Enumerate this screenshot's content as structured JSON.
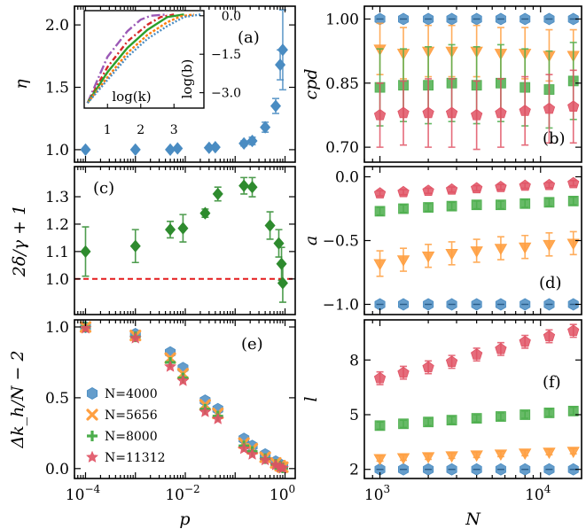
{
  "figure_title": "",
  "chart_data": [
    {
      "id": "a",
      "type": "scatter",
      "panel_label": "(a)",
      "xlabel": "",
      "ylabel": "η",
      "xscale": "log",
      "xlim": [
        6e-05,
        1.6
      ],
      "ylim": [
        0.9,
        2.15
      ],
      "xticks": [],
      "yticks": [
        1.0,
        1.5,
        2.0
      ],
      "ytick_labels": [
        "1.0",
        "1.5",
        "2.0"
      ],
      "series": [
        {
          "name": "η",
          "color": "#4a8cc2",
          "marker": "diamond",
          "points": [
            {
              "x": 0.0001,
              "y": 1.0,
              "err": 0.005
            },
            {
              "x": 0.001,
              "y": 1.0,
              "err": 0.005
            },
            {
              "x": 0.005,
              "y": 1.0,
              "err": 0.005
            },
            {
              "x": 0.007,
              "y": 1.01,
              "err": 0.005
            },
            {
              "x": 0.03,
              "y": 1.015,
              "err": 0.01
            },
            {
              "x": 0.04,
              "y": 1.02,
              "err": 0.015
            },
            {
              "x": 0.15,
              "y": 1.05,
              "err": 0.02
            },
            {
              "x": 0.22,
              "y": 1.07,
              "err": 0.03
            },
            {
              "x": 0.4,
              "y": 1.18,
              "err": 0.04
            },
            {
              "x": 0.65,
              "y": 1.35,
              "err": 0.06
            },
            {
              "x": 0.8,
              "y": 1.68,
              "err": 0.12
            },
            {
              "x": 0.9,
              "y": 1.8,
              "err": 0.32
            }
          ]
        }
      ],
      "inset": {
        "xlabel": "log(k)",
        "ylabel": "log(b)",
        "xlim": [
          0.3,
          3.9
        ],
        "ylim": [
          -3.6,
          0.2
        ],
        "xticks": [
          1,
          2,
          3
        ],
        "xtick_labels": [
          "1",
          "2",
          "3"
        ],
        "yticks": [
          0.0,
          -1.5,
          -3.0
        ],
        "ytick_labels": [
          "0.0",
          "−1.5",
          "−3.0"
        ],
        "curves": [
          {
            "name": "curve-purple",
            "color": "#9b59b6",
            "dash": "10 3 2 3",
            "pts": [
              [
                0.4,
                -3.4
              ],
              [
                1.0,
                -1.6
              ],
              [
                1.6,
                -0.6
              ],
              [
                2.0,
                -0.15
              ],
              [
                2.3,
                0.0
              ],
              [
                2.8,
                0.05
              ]
            ]
          },
          {
            "name": "curve-red",
            "color": "#d62728",
            "dash": "6 3 2 3",
            "pts": [
              [
                0.4,
                -3.4
              ],
              [
                1.0,
                -2.0
              ],
              [
                1.6,
                -1.0
              ],
              [
                2.2,
                -0.35
              ],
              [
                2.6,
                -0.05
              ],
              [
                3.0,
                0.05
              ]
            ]
          },
          {
            "name": "curve-green",
            "color": "#2ca02c",
            "dash": "",
            "pts": [
              [
                0.4,
                -3.4
              ],
              [
                1.0,
                -2.2
              ],
              [
                1.6,
                -1.25
              ],
              [
                2.2,
                -0.55
              ],
              [
                2.8,
                -0.05
              ],
              [
                3.3,
                0.05
              ]
            ]
          },
          {
            "name": "curve-orange",
            "color": "#ff7f0e",
            "dash": "3 2",
            "pts": [
              [
                0.4,
                -3.4
              ],
              [
                1.0,
                -2.4
              ],
              [
                1.6,
                -1.45
              ],
              [
                2.2,
                -0.75
              ],
              [
                2.8,
                -0.25
              ],
              [
                3.2,
                -0.02
              ],
              [
                3.6,
                0.05
              ]
            ]
          },
          {
            "name": "curve-blue",
            "color": "#4a8cc2",
            "dash": "2 2",
            "pts": [
              [
                0.4,
                -3.4
              ],
              [
                1.0,
                -2.5
              ],
              [
                1.6,
                -1.6
              ],
              [
                2.2,
                -0.9
              ],
              [
                2.8,
                -0.4
              ],
              [
                3.3,
                -0.05
              ],
              [
                3.8,
                0.05
              ]
            ]
          }
        ]
      }
    },
    {
      "id": "c",
      "type": "scatter",
      "panel_label": "(c)",
      "xlabel": "",
      "ylabel": "2δ/γ + 1",
      "xscale": "log",
      "xlim": [
        6e-05,
        1.6
      ],
      "ylim": [
        0.87,
        1.41
      ],
      "xticks": [],
      "yticks": [
        1.0,
        1.1,
        1.2,
        1.3
      ],
      "ytick_labels": [
        "1.0",
        "1.1",
        "1.2",
        "1.3"
      ],
      "hline": {
        "y": 1.0,
        "color": "#e41a1c"
      },
      "series": [
        {
          "name": "2δ/γ+1",
          "color": "#2e8b2e",
          "marker": "diamond",
          "points": [
            {
              "x": 0.0001,
              "y": 1.1,
              "err": 0.09
            },
            {
              "x": 0.001,
              "y": 1.12,
              "err": 0.06
            },
            {
              "x": 0.005,
              "y": 1.18,
              "err": 0.03
            },
            {
              "x": 0.009,
              "y": 1.185,
              "err": 0.05
            },
            {
              "x": 0.025,
              "y": 1.24,
              "err": 0.015
            },
            {
              "x": 0.045,
              "y": 1.31,
              "err": 0.025
            },
            {
              "x": 0.15,
              "y": 1.34,
              "err": 0.03
            },
            {
              "x": 0.22,
              "y": 1.335,
              "err": 0.035
            },
            {
              "x": 0.5,
              "y": 1.195,
              "err": 0.05
            },
            {
              "x": 0.75,
              "y": 1.13,
              "err": 0.05
            },
            {
              "x": 0.85,
              "y": 1.055,
              "err": 0.06
            },
            {
              "x": 0.9,
              "y": 0.985,
              "err": 0.07
            }
          ]
        }
      ]
    },
    {
      "id": "e",
      "type": "scatter",
      "panel_label": "(e)",
      "xlabel": "p",
      "ylabel": "Δk_h/N − 2",
      "xscale": "log",
      "xlim": [
        6e-05,
        1.6
      ],
      "ylim": [
        -0.07,
        1.05
      ],
      "xticks": [
        0.0001,
        0.01,
        1
      ],
      "xtick_labels": [
        "10",
        "10",
        "10"
      ],
      "xtick_exponents": [
        "−4",
        "−2",
        "0"
      ],
      "yticks": [
        0.0,
        0.5,
        1.0
      ],
      "ytick_labels": [
        "0.0",
        "0.5",
        "1.0"
      ],
      "legend_location": "lower-left",
      "legend_labels": [
        "N=4000",
        "N=5656",
        "N=8000",
        "N=11312"
      ],
      "x": [
        0.0001,
        0.001,
        0.005,
        0.009,
        0.025,
        0.045,
        0.15,
        0.22,
        0.4,
        0.65,
        0.8,
        0.9
      ],
      "series": [
        {
          "name": "N=4000",
          "color": "#4a8cc2",
          "marker": "hexagon",
          "values": [
            1.0,
            0.95,
            0.82,
            0.71,
            0.48,
            0.42,
            0.21,
            0.16,
            0.1,
            0.05,
            0.03,
            0.015
          ]
        },
        {
          "name": "N=5656",
          "color": "#ff9f40",
          "marker": "x",
          "values": [
            1.0,
            0.94,
            0.78,
            0.67,
            0.45,
            0.39,
            0.18,
            0.14,
            0.08,
            0.04,
            0.02,
            0.01
          ]
        },
        {
          "name": "N=8000",
          "color": "#4cae4c",
          "marker": "plus",
          "values": [
            1.0,
            0.93,
            0.75,
            0.64,
            0.42,
            0.37,
            0.16,
            0.12,
            0.07,
            0.03,
            0.015,
            0.005
          ]
        },
        {
          "name": "N=11312",
          "color": "#e05264",
          "marker": "star",
          "values": [
            0.99,
            0.92,
            0.72,
            0.62,
            0.4,
            0.35,
            0.14,
            0.1,
            0.06,
            0.025,
            0.01,
            0.002
          ]
        }
      ]
    },
    {
      "id": "b",
      "type": "scatter",
      "panel_label": "(b)",
      "xlabel": "",
      "ylabel": "cpd",
      "xscale": "log",
      "xlim": [
        800,
        18000
      ],
      "ylim": [
        0.665,
        1.03
      ],
      "xticks": [],
      "yticks": [
        0.7,
        0.85,
        1.0
      ],
      "ytick_labels": [
        "0.70",
        "0.85",
        "1.00"
      ],
      "x": [
        1000,
        1400,
        2000,
        2800,
        4000,
        5656,
        8000,
        11312,
        16000
      ],
      "series": [
        {
          "name": "N=4000",
          "color": "#4a8cc2",
          "marker": "hexagon",
          "values": [
            1.0,
            1.0,
            1.0,
            1.0,
            1.0,
            1.0,
            1.0,
            1.0,
            1.0
          ],
          "err": [
            0,
            0,
            0,
            0,
            0,
            0,
            0,
            0,
            0
          ]
        },
        {
          "name": "N=5656",
          "color": "#ff9f40",
          "marker": "triangle-down",
          "values": [
            0.93,
            0.92,
            0.925,
            0.925,
            0.925,
            0.92,
            0.92,
            0.915,
            0.915
          ],
          "err": [
            0.06,
            0.06,
            0.06,
            0.06,
            0.06,
            0.06,
            0.06,
            0.06,
            0.06
          ]
        },
        {
          "name": "N=8000",
          "color": "#4cae4c",
          "marker": "square",
          "values": [
            0.84,
            0.845,
            0.845,
            0.85,
            0.845,
            0.85,
            0.84,
            0.835,
            0.855
          ],
          "err": [
            0.09,
            0.085,
            0.09,
            0.09,
            0.09,
            0.09,
            0.09,
            0.09,
            0.09
          ]
        },
        {
          "name": "N=11312",
          "color": "#e05264",
          "marker": "pentagon",
          "values": [
            0.775,
            0.78,
            0.78,
            0.78,
            0.775,
            0.78,
            0.785,
            0.79,
            0.795
          ],
          "err": [
            0.075,
            0.075,
            0.08,
            0.08,
            0.08,
            0.08,
            0.08,
            0.08,
            0.085
          ]
        }
      ]
    },
    {
      "id": "d",
      "type": "scatter",
      "panel_label": "(d)",
      "xlabel": "",
      "ylabel": "a",
      "xscale": "log",
      "xlim": [
        800,
        18000
      ],
      "ylim": [
        -1.08,
        0.08
      ],
      "xticks": [],
      "yticks": [
        0.0,
        -0.5,
        -1.0
      ],
      "ytick_labels": [
        "0.0",
        "−0.5",
        "−1.0"
      ],
      "x": [
        1000,
        1400,
        2000,
        2800,
        4000,
        5656,
        8000,
        11312,
        16000
      ],
      "series": [
        {
          "name": "N=4000",
          "color": "#4a8cc2",
          "marker": "hexagon",
          "values": [
            -1.0,
            -1.0,
            -1.0,
            -1.0,
            -1.0,
            -1.0,
            -1.0,
            -1.0,
            -1.0
          ],
          "err": [
            0,
            0,
            0,
            0,
            0,
            0,
            0,
            0,
            0
          ]
        },
        {
          "name": "N=5656",
          "color": "#ff9f40",
          "marker": "triangle-down",
          "values": [
            -0.68,
            -0.65,
            -0.62,
            -0.6,
            -0.58,
            -0.56,
            -0.55,
            -0.53,
            -0.52
          ],
          "err": [
            0.1,
            0.09,
            0.09,
            0.09,
            0.09,
            0.09,
            0.09,
            0.09,
            0.09
          ]
        },
        {
          "name": "N=8000",
          "color": "#4cae4c",
          "marker": "square",
          "values": [
            -0.27,
            -0.25,
            -0.24,
            -0.23,
            -0.22,
            -0.22,
            -0.21,
            -0.2,
            -0.19
          ],
          "err": [
            0.03,
            0.03,
            0.03,
            0.03,
            0.03,
            0.03,
            0.03,
            0.03,
            0.03
          ]
        },
        {
          "name": "N=11312",
          "color": "#e05264",
          "marker": "pentagon",
          "values": [
            -0.13,
            -0.12,
            -0.11,
            -0.1,
            -0.09,
            -0.08,
            -0.07,
            -0.065,
            -0.05
          ],
          "err": [
            0.02,
            0.02,
            0.02,
            0.02,
            0.02,
            0.02,
            0.02,
            0.02,
            0.02
          ]
        }
      ]
    },
    {
      "id": "f",
      "type": "scatter",
      "panel_label": "(f)",
      "xlabel": "N",
      "ylabel": "l",
      "xscale": "log",
      "xlim": [
        800,
        18000
      ],
      "ylim": [
        1.5,
        10.2
      ],
      "xticks": [
        1000,
        10000
      ],
      "xtick_labels": [
        "10",
        "10"
      ],
      "xtick_exponents": [
        "3",
        "4"
      ],
      "yticks": [
        2,
        5,
        8
      ],
      "ytick_labels": [
        "2",
        "5",
        "8"
      ],
      "x": [
        1000,
        1400,
        2000,
        2800,
        4000,
        5656,
        8000,
        11312,
        16000
      ],
      "series": [
        {
          "name": "N=4000",
          "color": "#4a8cc2",
          "marker": "hexagon",
          "values": [
            2.0,
            2.0,
            2.0,
            2.0,
            2.0,
            2.0,
            2.0,
            2.0,
            2.0
          ],
          "err": [
            0,
            0,
            0,
            0,
            0,
            0,
            0,
            0,
            0
          ]
        },
        {
          "name": "N=5656",
          "color": "#ff9f40",
          "marker": "triangle-down",
          "values": [
            2.6,
            2.65,
            2.7,
            2.75,
            2.8,
            2.85,
            2.9,
            2.95,
            3.0
          ],
          "err": [
            0.15,
            0.15,
            0.15,
            0.15,
            0.15,
            0.15,
            0.15,
            0.15,
            0.15
          ]
        },
        {
          "name": "N=8000",
          "color": "#4cae4c",
          "marker": "square",
          "values": [
            4.4,
            4.5,
            4.6,
            4.7,
            4.8,
            4.9,
            5.0,
            5.1,
            5.2
          ],
          "err": [
            0.2,
            0.2,
            0.2,
            0.2,
            0.2,
            0.2,
            0.2,
            0.2,
            0.2
          ]
        },
        {
          "name": "N=11312",
          "color": "#e05264",
          "marker": "pentagon",
          "values": [
            7.0,
            7.3,
            7.6,
            7.9,
            8.3,
            8.6,
            9.0,
            9.3,
            9.6
          ],
          "err": [
            0.35,
            0.35,
            0.35,
            0.35,
            0.35,
            0.35,
            0.35,
            0.35,
            0.35
          ]
        }
      ]
    }
  ]
}
